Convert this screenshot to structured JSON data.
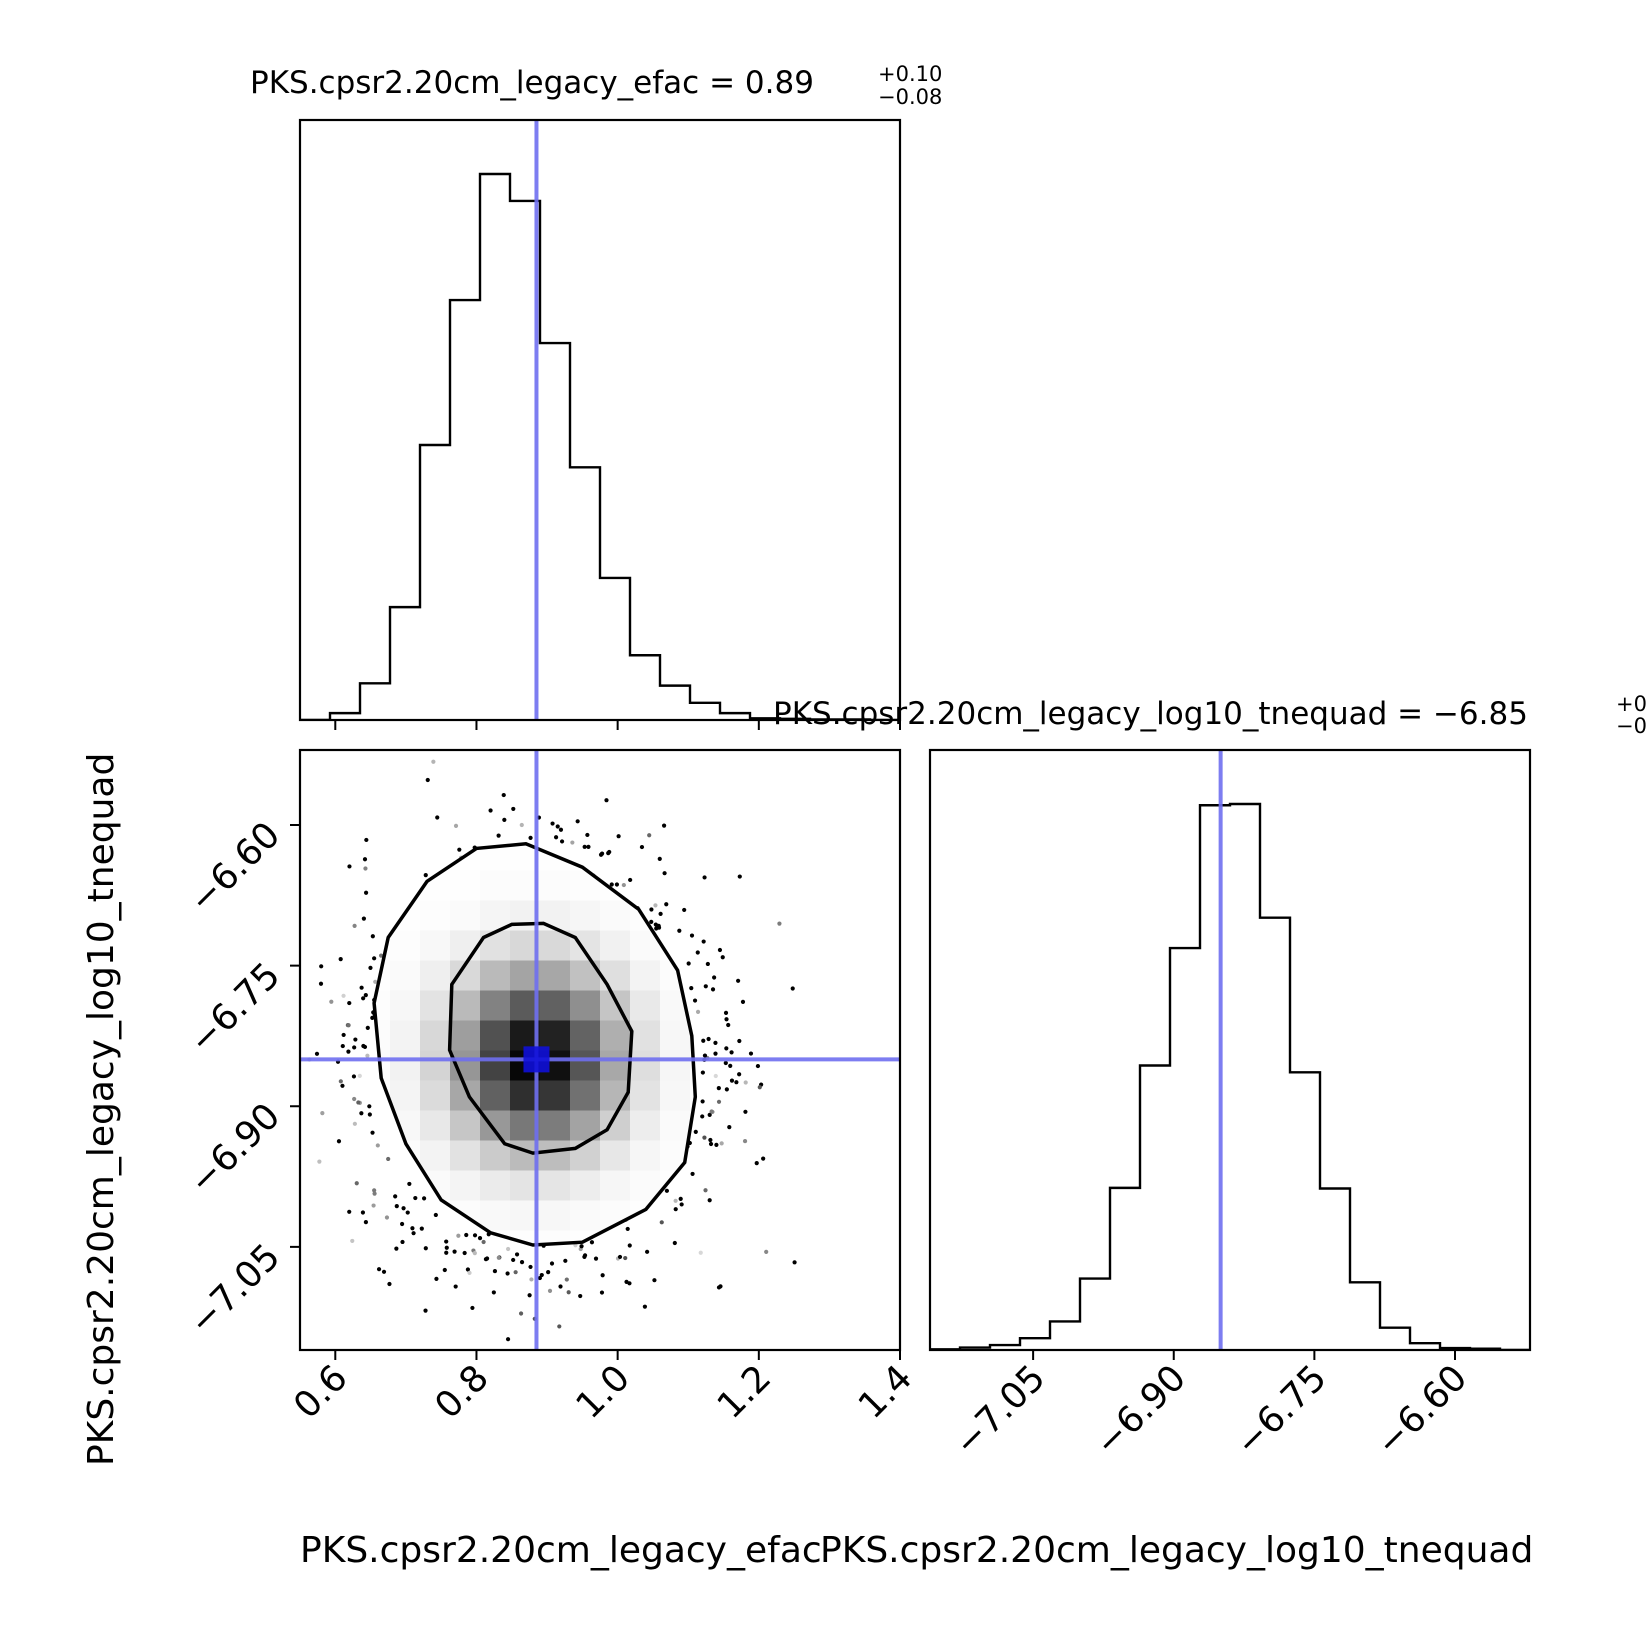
{
  "chart_data": {
    "type": "corner",
    "parameters": [
      "PKS.cpsr2.20cm_legacy_efac",
      "PKS.cpsr2.20cm_legacy_log10_tnequad"
    ],
    "titles": [
      {
        "prefix": "PKS.cpsr2.20cm_legacy_efac = 0.89",
        "plus": "+0.10",
        "minus": "−0.08"
      },
      {
        "prefix": "PKS.cpsr2.20cm_legacy_log10_tnequad = −6.85",
        "plus": "+0",
        "minus": "−0"
      }
    ],
    "truths": {
      "efac": 0.885,
      "log10_tnequad": -6.85
    },
    "efac_axis": {
      "range": [
        0.55,
        1.4
      ],
      "ticks": [
        0.6,
        0.8,
        1.0,
        1.2,
        1.4
      ],
      "tick_labels": [
        "0.6",
        "0.8",
        "1.0",
        "1.2",
        "1.4"
      ]
    },
    "tnequad_axis": {
      "range": [
        -7.16,
        -6.52
      ],
      "ticks": [
        -7.05,
        -6.9,
        -6.75,
        -6.6
      ],
      "tick_labels": [
        "−7.05",
        "−6.90",
        "−6.75",
        "−6.60"
      ]
    },
    "hist_efac": {
      "bin_edges": [
        0.55,
        0.5925,
        0.635,
        0.6775,
        0.72,
        0.7625,
        0.805,
        0.8475,
        0.89,
        0.9325,
        0.975,
        1.0175,
        1.06,
        1.1025,
        1.145,
        1.1875,
        1.23,
        1.2725,
        1.315,
        1.3575,
        1.4
      ],
      "counts": [
        0.0,
        0.012,
        0.064,
        0.197,
        0.48,
        0.733,
        0.953,
        0.906,
        0.658,
        0.441,
        0.248,
        0.113,
        0.06,
        0.03,
        0.012,
        0.003,
        0.002,
        0.001,
        0.001,
        0.0
      ]
    },
    "hist_tnequad": {
      "bin_edges": [
        -7.16,
        -7.128,
        -7.096,
        -7.064,
        -7.032,
        -7.0,
        -6.968,
        -6.936,
        -6.904,
        -6.872,
        -6.84,
        -6.808,
        -6.776,
        -6.744,
        -6.712,
        -6.68,
        -6.648,
        -6.616,
        -6.584,
        -6.552,
        -6.52
      ],
      "counts": [
        0.001,
        0.004,
        0.008,
        0.019,
        0.046,
        0.115,
        0.261,
        0.458,
        0.647,
        0.877,
        0.879,
        0.696,
        0.447,
        0.26,
        0.109,
        0.036,
        0.011,
        0.003,
        0.002,
        0.0
      ]
    },
    "contours": [
      [
        [
          0.73,
          -6.66
        ],
        [
          0.8,
          -6.625
        ],
        [
          0.87,
          -6.62
        ],
        [
          0.95,
          -6.645
        ],
        [
          1.03,
          -6.69
        ],
        [
          1.085,
          -6.755
        ],
        [
          1.105,
          -6.825
        ],
        [
          1.11,
          -6.89
        ],
        [
          1.095,
          -6.96
        ],
        [
          1.04,
          -7.01
        ],
        [
          0.95,
          -7.045
        ],
        [
          0.88,
          -7.048
        ],
        [
          0.82,
          -7.035
        ],
        [
          0.75,
          -7.0
        ],
        [
          0.7,
          -6.94
        ],
        [
          0.665,
          -6.87
        ],
        [
          0.655,
          -6.79
        ],
        [
          0.675,
          -6.72
        ]
      ],
      [
        [
          0.81,
          -6.72
        ],
        [
          0.85,
          -6.706
        ],
        [
          0.895,
          -6.705
        ],
        [
          0.94,
          -6.72
        ],
        [
          0.985,
          -6.77
        ],
        [
          1.02,
          -6.82
        ],
        [
          1.015,
          -6.885
        ],
        [
          0.985,
          -6.925
        ],
        [
          0.94,
          -6.945
        ],
        [
          0.88,
          -6.95
        ],
        [
          0.84,
          -6.94
        ],
        [
          0.79,
          -6.89
        ],
        [
          0.762,
          -6.84
        ],
        [
          0.765,
          -6.77
        ]
      ]
    ],
    "density_peak": {
      "efac": 0.885,
      "log10_tnequad": -6.85
    }
  }
}
